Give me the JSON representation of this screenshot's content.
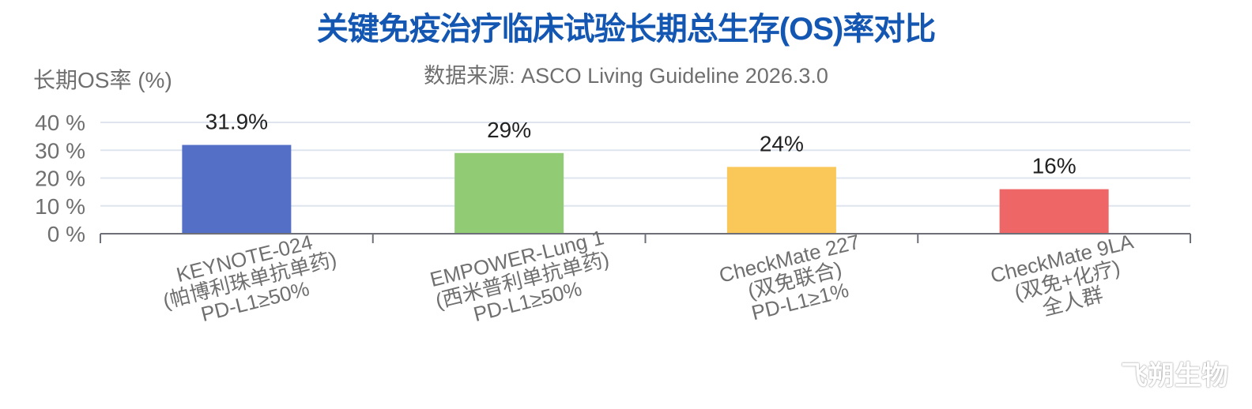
{
  "watermark": "飞朔生物",
  "chart_data": {
    "type": "bar",
    "title": "关键免疫治疗临床试验长期总生存(OS)率对比",
    "subtitle": "数据来源: ASCO Living Guideline 2026.3.0",
    "ylabel": "长期OS率 (%)",
    "xlabel": "",
    "ylim": [
      0,
      40
    ],
    "yticks": [
      0,
      10,
      20,
      30,
      40
    ],
    "ytick_suffix": " %",
    "grid": true,
    "categories": [
      [
        "KEYNOTE-024",
        "(帕博利珠单抗单药)",
        "PD-L1≥50%"
      ],
      [
        "EMPOWER-Lung 1",
        "(西米普利单抗单药)",
        "PD-L1≥50%"
      ],
      [
        "CheckMate 227",
        "(双免联合)",
        "PD-L1≥1%"
      ],
      [
        "CheckMate 9LA",
        "(双免+化疗)",
        "全人群"
      ]
    ],
    "values": [
      31.9,
      29,
      24,
      16
    ],
    "data_labels": [
      "31.9%",
      "29%",
      "24%",
      "16%"
    ],
    "colors": [
      "#5470c6",
      "#91cc75",
      "#fac858",
      "#ee6666"
    ]
  }
}
